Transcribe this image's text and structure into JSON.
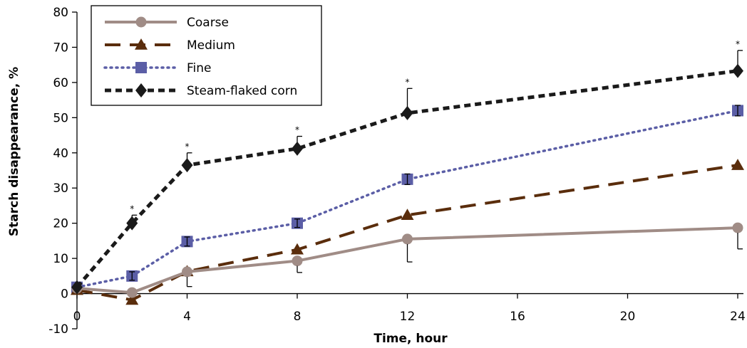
{
  "chart_data": {
    "type": "line",
    "xlabel": "Time, hour",
    "ylabel": "Starch disappearance, %",
    "ylim": [
      -10,
      80
    ],
    "yticks": [
      -10,
      0,
      10,
      20,
      30,
      40,
      50,
      60,
      70,
      80
    ],
    "xticks": [
      0,
      4,
      8,
      12,
      16,
      20,
      24
    ],
    "x": [
      0,
      2,
      4,
      8,
      12,
      24
    ],
    "legend_position": "top-left",
    "grid": false,
    "series": [
      {
        "name": "Coarse",
        "marker": "circle",
        "color": "#a08c86",
        "dash": "solid",
        "values": [
          1.5,
          0.3,
          6.2,
          9.3,
          15.5,
          18.7
        ],
        "err": [
          0,
          0,
          4.2,
          3.3,
          6.5,
          6.0
        ]
      },
      {
        "name": "Medium",
        "marker": "triangle",
        "color": "#5a2d0c",
        "dash": "long-dash",
        "values": [
          1.0,
          -1.8,
          6.3,
          12.5,
          22.3,
          36.5
        ],
        "err": [
          0,
          0,
          0,
          0,
          0,
          0
        ]
      },
      {
        "name": "Fine",
        "marker": "square",
        "color": "#5b5ea6",
        "dash": "dotted",
        "values": [
          1.8,
          5.0,
          14.8,
          20.0,
          32.5,
          52.0
        ],
        "err": [
          0.8,
          1.2,
          1.3,
          1.2,
          1.5,
          1.5
        ]
      },
      {
        "name": "Steam-flaked corn",
        "marker": "diamond",
        "color": "#1a1a1a",
        "dash": "short-dash",
        "values": [
          1.8,
          20.0,
          36.5,
          41.2,
          51.3,
          63.3
        ],
        "err": [
          0,
          2.3,
          3.5,
          3.5,
          7.0,
          5.8
        ]
      }
    ],
    "annotations": [
      {
        "x": 2,
        "text": "*",
        "y": 22.3
      },
      {
        "x": 4,
        "text": "*",
        "y": 40.0
      },
      {
        "x": 8,
        "text": "*",
        "y": 44.7
      },
      {
        "x": 12,
        "text": "*",
        "y": 58.3
      },
      {
        "x": 24,
        "text": "*",
        "y": 69.1
      }
    ]
  }
}
